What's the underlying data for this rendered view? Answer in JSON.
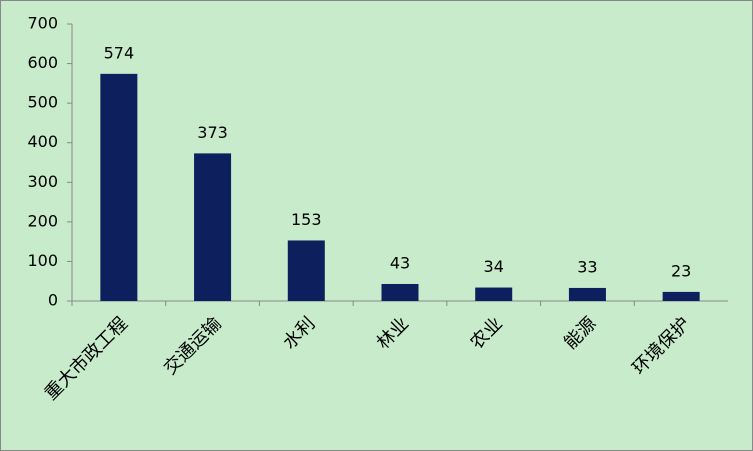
{
  "chart_data": {
    "type": "bar",
    "categories": [
      "重大市政工程",
      "交通运输",
      "水利",
      "林业",
      "农业",
      "能源",
      "环境保护"
    ],
    "values": [
      574,
      373,
      153,
      43,
      34,
      33,
      23
    ],
    "color": "#0d1f5c",
    "ylim": [
      0,
      700
    ],
    "yticks": [
      0,
      100,
      200,
      300,
      400,
      500,
      600,
      700
    ]
  }
}
